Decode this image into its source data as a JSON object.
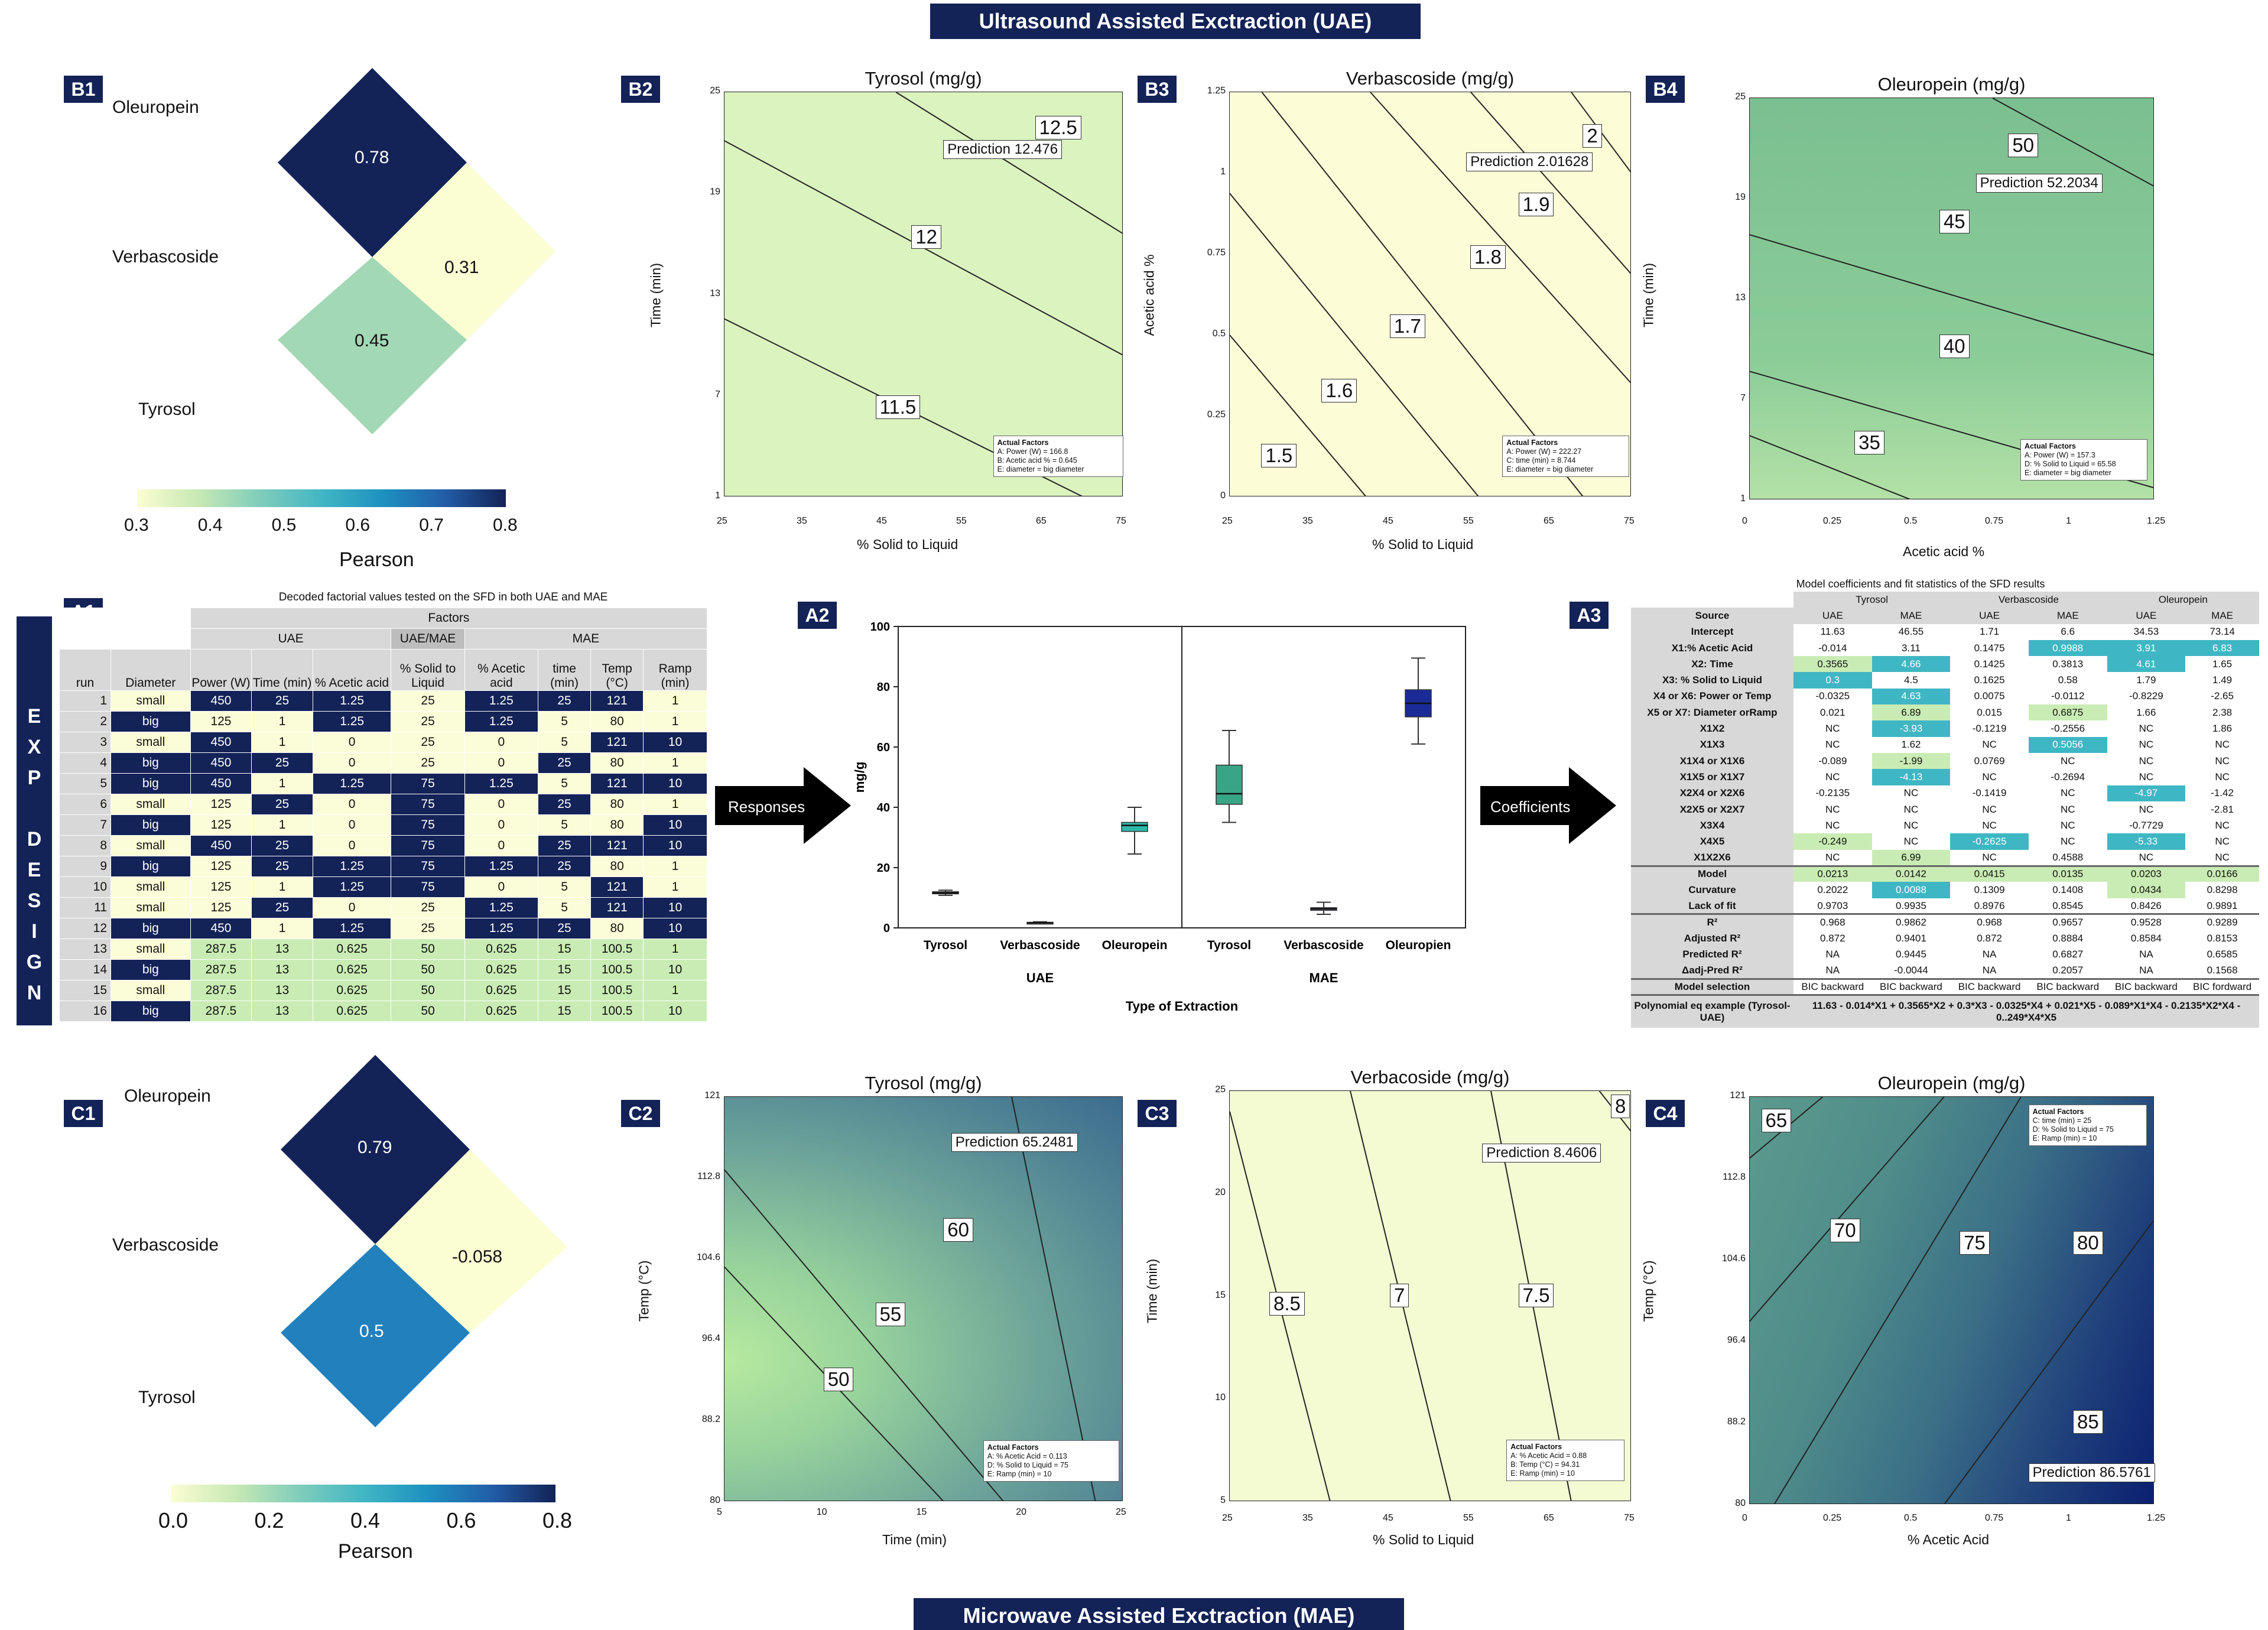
{
  "banners": {
    "top": "Ultrasound Assisted Exctraction (UAE)",
    "bottom": "Microwave Assisted Exctraction (MAE)"
  },
  "side_label": [
    "E",
    "X",
    "P",
    "",
    "D",
    "E",
    "S",
    "I",
    "G",
    "N"
  ],
  "panels": {
    "B1": {
      "label": "B1",
      "names": [
        "Oleuropein",
        "Verbascoside",
        "Tyrosol"
      ],
      "values": [
        "0.78",
        "0.31",
        "0.45"
      ],
      "colorbar_ticks": [
        "0.3",
        "0.4",
        "0.5",
        "0.6",
        "0.7",
        "0.8"
      ],
      "colorbar_title": "Pearson"
    },
    "C1": {
      "label": "C1",
      "names": [
        "Oleuropein",
        "Verbascoside",
        "Tyrosol"
      ],
      "values": [
        "0.79",
        "-0.058",
        "0.5"
      ],
      "colorbar_ticks": [
        "0.0",
        "0.2",
        "0.4",
        "0.6",
        "0.8"
      ],
      "colorbar_title": "Pearson"
    },
    "B2": {
      "label": "B2",
      "title": "Tyrosol (mg/g)",
      "xlabel": "% Solid to Liquid",
      "ylabel": "Time (min)",
      "xticks": [
        "25",
        "35",
        "45",
        "55",
        "65",
        "75"
      ],
      "yticks": [
        "25",
        "19",
        "13",
        "7",
        "1"
      ],
      "contours": [
        "12.5",
        "12",
        "11.5"
      ],
      "prediction": "Prediction  12.476",
      "af_title": "Actual Factors",
      "af": [
        "A: Power (W) = 166.8",
        "B: Acetic acid % = 0.645",
        "E: diameter = big diameter"
      ]
    },
    "B3": {
      "label": "B3",
      "title": "Verbascoside (mg/g)",
      "xlabel": "% Solid to Liquid",
      "ylabel": "Acetic acid %",
      "xticks": [
        "25",
        "35",
        "45",
        "55",
        "65",
        "75"
      ],
      "yticks": [
        "1.25",
        "1",
        "0.75",
        "0.5",
        "0.25",
        "0"
      ],
      "contours": [
        "2",
        "1.9",
        "1.8",
        "1.7",
        "1.6",
        "1.5"
      ],
      "prediction": "Prediction  2.01628",
      "af_title": "Actual Factors",
      "af": [
        "A: Power (W) = 222.27",
        "C: time (min) = 8.744",
        "E: diameter = big diameter"
      ]
    },
    "B4": {
      "label": "B4",
      "title": "Oleuropein (mg/g)",
      "xlabel": "Acetic acid %",
      "ylabel": "Time (min)",
      "xticks": [
        "0",
        "0.25",
        "0.5",
        "0.75",
        "1",
        "1.25"
      ],
      "yticks": [
        "25",
        "19",
        "13",
        "7",
        "1"
      ],
      "contours": [
        "50",
        "45",
        "40",
        "35"
      ],
      "prediction": "Prediction  52.2034",
      "af_title": "Actual Factors",
      "af": [
        "A: Power (W) = 157.3",
        "D: % Solid to Liquid = 65.58",
        "E: diameter = big diameter"
      ]
    },
    "C2": {
      "label": "C2",
      "title": "Tyrosol (mg/g)",
      "xlabel": "Time (min)",
      "ylabel": "Temp (°C)",
      "xticks": [
        "5",
        "10",
        "15",
        "20",
        "25"
      ],
      "yticks": [
        "121",
        "112.8",
        "104.6",
        "96.4",
        "88.2",
        "80"
      ],
      "contours": [
        "60",
        "55",
        "50"
      ],
      "prediction": "Prediction  65.2481",
      "af_title": "Actual Factors",
      "af": [
        "A: % Acetic Acid = 0.113",
        "D: % Solid to Liquid = 75",
        "E: Ramp (min) = 10"
      ]
    },
    "C3": {
      "label": "C3",
      "title": "Verbacoside (mg/g)",
      "xlabel": "% Solid to Liquid",
      "ylabel": "Time (min)",
      "xticks": [
        "25",
        "35",
        "45",
        "55",
        "65",
        "75"
      ],
      "yticks": [
        "25",
        "20",
        "15",
        "10",
        "5"
      ],
      "contours": [
        "8.5",
        "7",
        "7.5",
        "8"
      ],
      "prediction": "Prediction  8.4606",
      "af_title": "Actual Factors",
      "af": [
        "A: % Acetic Acid = 0.88",
        "B: Temp (°C) = 94.31",
        "E: Ramp (min) = 10"
      ]
    },
    "C4": {
      "label": "C4",
      "title": "Oleuropein (mg/g)",
      "xlabel": "% Acetic Acid",
      "ylabel": "Temp (°C)",
      "xticks": [
        "0",
        "0.25",
        "0.5",
        "0.75",
        "1",
        "1.25"
      ],
      "yticks": [
        "121",
        "112.8",
        "104.6",
        "96.4",
        "88.2",
        "80"
      ],
      "contours": [
        "65",
        "70",
        "75",
        "80",
        "85"
      ],
      "prediction": "Prediction  86.5761",
      "af_title": "Actual Factors",
      "af": [
        "C: time (min) = 25",
        "D: % Solid to Liquid = 75",
        "E: Ramp (min) = 10"
      ]
    }
  },
  "a1": {
    "label": "A1",
    "title": "Decoded factorial values tested on the SFD in both UAE and MAE",
    "h_factors": "Factors",
    "h_uae": "UAE",
    "h_uaemae": "UAE/MAE",
    "h_mae": "MAE",
    "cols": [
      "run",
      "Diameter",
      "Power (W)",
      "Time (min)",
      "% Acetic acid",
      "% Solid to Liquid",
      "% Acetic acid",
      "time (min)",
      "Temp (°C)",
      "Ramp (min)"
    ],
    "rows": [
      [
        "1",
        "small",
        "450",
        "25",
        "1.25",
        "25",
        "1.25",
        "25",
        "121",
        "1"
      ],
      [
        "2",
        "big",
        "125",
        "1",
        "1.25",
        "25",
        "1.25",
        "5",
        "80",
        "1"
      ],
      [
        "3",
        "small",
        "450",
        "1",
        "0",
        "25",
        "0",
        "5",
        "121",
        "10"
      ],
      [
        "4",
        "big",
        "450",
        "25",
        "0",
        "25",
        "0",
        "25",
        "80",
        "1"
      ],
      [
        "5",
        "big",
        "450",
        "1",
        "1.25",
        "75",
        "1.25",
        "5",
        "121",
        "10"
      ],
      [
        "6",
        "small",
        "125",
        "25",
        "0",
        "75",
        "0",
        "25",
        "80",
        "1"
      ],
      [
        "7",
        "big",
        "125",
        "1",
        "0",
        "75",
        "0",
        "5",
        "80",
        "10"
      ],
      [
        "8",
        "small",
        "450",
        "25",
        "0",
        "75",
        "0",
        "25",
        "121",
        "10"
      ],
      [
        "9",
        "big",
        "125",
        "25",
        "1.25",
        "75",
        "1.25",
        "25",
        "80",
        "1"
      ],
      [
        "10",
        "small",
        "125",
        "1",
        "1.25",
        "75",
        "0",
        "5",
        "121",
        "1"
      ],
      [
        "11",
        "small",
        "125",
        "25",
        "0",
        "25",
        "1.25",
        "5",
        "121",
        "10"
      ],
      [
        "12",
        "big",
        "450",
        "1",
        "1.25",
        "25",
        "1.25",
        "25",
        "80",
        "10"
      ],
      [
        "13",
        "small",
        "287.5",
        "13",
        "0.625",
        "50",
        "0.625",
        "15",
        "100.5",
        "1"
      ],
      [
        "14",
        "big",
        "287.5",
        "13",
        "0.625",
        "50",
        "0.625",
        "15",
        "100.5",
        "10"
      ],
      [
        "15",
        "small",
        "287.5",
        "13",
        "0.625",
        "50",
        "0.625",
        "15",
        "100.5",
        "1"
      ],
      [
        "16",
        "big",
        "287.5",
        "13",
        "0.625",
        "50",
        "0.625",
        "15",
        "100.5",
        "10"
      ]
    ]
  },
  "arrows": {
    "responses": "Responses",
    "coefficients": "Coefficients"
  },
  "chart_data": {
    "type": "box",
    "label": "A2",
    "ylabel": "mg/g",
    "xlabel": "Type of Extraction",
    "ylim": [
      0,
      100
    ],
    "yticks": [
      "0",
      "20",
      "40",
      "60",
      "80",
      "100"
    ],
    "groups": [
      "UAE",
      "MAE"
    ],
    "categories": [
      "Tyrosol",
      "Verbascoside",
      "Oleuropein",
      "Tyrosol",
      "Verbascoside",
      "Oleuropien"
    ],
    "boxes": [
      {
        "group": "UAE",
        "min": 10.8,
        "q1": 11.3,
        "median": 11.6,
        "q3": 12.0,
        "max": 12.5,
        "color": "#9aa6a9"
      },
      {
        "group": "UAE",
        "min": 1.4,
        "q1": 1.6,
        "median": 1.7,
        "q3": 1.85,
        "max": 2.0,
        "color": "#9aa6a9"
      },
      {
        "group": "UAE",
        "min": 24.5,
        "q1": 32,
        "median": 34,
        "q3": 35,
        "max": 40,
        "color": "#2db8aa"
      },
      {
        "group": "MAE",
        "min": 35,
        "q1": 41,
        "median": 44.5,
        "q3": 54,
        "max": 65.5,
        "color": "#3aa586"
      },
      {
        "group": "MAE",
        "min": 4.5,
        "q1": 5.8,
        "median": 6.3,
        "q3": 6.7,
        "max": 8.5,
        "color": "#7e8a92"
      },
      {
        "group": "MAE",
        "min": 61,
        "q1": 70,
        "median": 74.5,
        "q3": 79,
        "max": 89.5,
        "color": "#1a2b98"
      }
    ]
  },
  "a3": {
    "label": "A3",
    "title": "Model coefficients and fit statistics of the SFD results",
    "compounds": [
      "Tyrosol",
      "Verbascoside",
      "Oleuropein"
    ],
    "sub": [
      "Source",
      "UAE",
      "MAE",
      "UAE",
      "MAE",
      "UAE",
      "MAE"
    ],
    "rows": [
      [
        "Intercept",
        "11.63",
        "46.55",
        "1.71",
        "6.6",
        "34.53",
        "73.14"
      ],
      [
        "X1:% Acetic Acid",
        "-0.014",
        "3.11",
        "0.1475",
        "0.9988",
        "3.91",
        "6.83"
      ],
      [
        "X2: Time",
        "0.3565",
        "4.66",
        "0.1425",
        "0.3813",
        "4.61",
        "1.65"
      ],
      [
        "X3: % Solid to Liquid",
        "0.3",
        "4.5",
        "0.1625",
        "0.58",
        "1.79",
        "1.49"
      ],
      [
        "X4 or X6: Power or Temp",
        "-0.0325",
        "4.63",
        "0.0075",
        "-0.0112",
        "-0.8229",
        "-2.65"
      ],
      [
        "X5 or X7: Diameter orRamp",
        "0.021",
        "6.89",
        "0.015",
        "0.6875",
        "1.66",
        "2.38"
      ],
      [
        "X1X2",
        "NC",
        "-3.93",
        "-0.1219",
        "-0.2556",
        "NC",
        "1.86"
      ],
      [
        "X1X3",
        "NC",
        "1.62",
        "NC",
        "0.5056",
        "NC",
        "NC"
      ],
      [
        "X1X4 or X1X6",
        "-0.089",
        "-1.99",
        "0.0769",
        "NC",
        "NC",
        "NC"
      ],
      [
        "X1X5 or X1X7",
        "NC",
        "-4.13",
        "NC",
        "-0.2694",
        "NC",
        "NC"
      ],
      [
        "X2X4 or X2X6",
        "-0.2135",
        "NC",
        "-0.1419",
        "NC",
        "-4.97",
        "-1.42"
      ],
      [
        "X2X5 or X2X7",
        "NC",
        "NC",
        "NC",
        "NC",
        "NC",
        "-2.81"
      ],
      [
        "X3X4",
        "NC",
        "NC",
        "NC",
        "NC",
        "-0.7729",
        "NC"
      ],
      [
        "X4X5",
        "-0.249",
        "NC",
        "-0.2625",
        "NC",
        "-5.33",
        "NC"
      ],
      [
        "X1X2X6",
        "NC",
        "6.99",
        "NC",
        "0.4588",
        "NC",
        "NC"
      ],
      [
        "Model",
        "0.0213",
        "0.0142",
        "0.0415",
        "0.0135",
        "0.0203",
        "0.0166"
      ],
      [
        "Curvature",
        "0.2022",
        "0.0088",
        "0.1309",
        "0.1408",
        "0.0434",
        "0.8298"
      ],
      [
        "Lack of fit",
        "0.9703",
        "0.9935",
        "0.8976",
        "0.8545",
        "0.8426",
        "0.9891"
      ],
      [
        "R²",
        "0.968",
        "0.9862",
        "0.968",
        "0.9657",
        "0.9528",
        "0.9289"
      ],
      [
        "Adjusted R²",
        "0.872",
        "0.9401",
        "0.872",
        "0.8884",
        "0.8584",
        "0.8153"
      ],
      [
        "Predicted R²",
        "NA",
        "0.9445",
        "NA",
        "0.6827",
        "NA",
        "0.6585"
      ],
      [
        "Δadj-Pred R²",
        "NA",
        "-0.0044",
        "NA",
        "0.2057",
        "NA",
        "0.1568"
      ],
      [
        "Model selection",
        "BIC backward",
        "BIC backward",
        "BIC backward",
        "BIC backward",
        "BIC backward",
        "BIC fordward"
      ]
    ],
    "poly_label": "Polynomial eq example (Tyrosol-UAE)",
    "poly_eq": "11.63 - 0.014*X1 + 0.3565*X2 + 0.3*X3 - 0.0325*X4 + 0.021*X5 - 0.089*X1*X4 - 0.2135*X2*X4 - 0..249*X4*X5"
  }
}
